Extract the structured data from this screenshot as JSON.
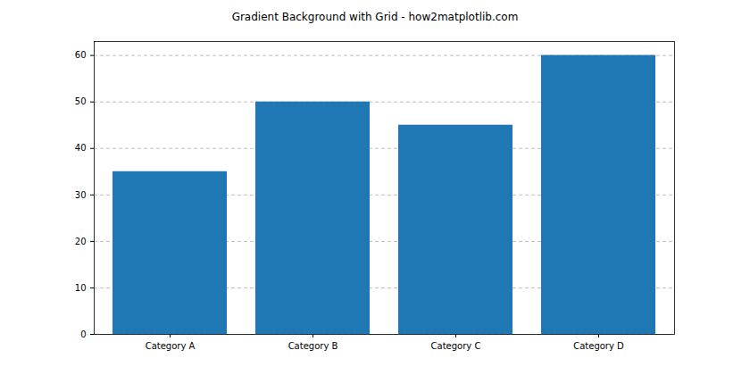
{
  "chart_data": {
    "type": "bar",
    "title": "Gradient Background with Grid - how2matplotlib.com",
    "categories": [
      "Category A",
      "Category B",
      "Category C",
      "Category D"
    ],
    "values": [
      35,
      50,
      45,
      60
    ],
    "color": "#1f77b4",
    "ylim": [
      0,
      63
    ],
    "yticks": [
      0,
      10,
      20,
      30,
      40,
      50,
      60
    ],
    "grid": true
  }
}
